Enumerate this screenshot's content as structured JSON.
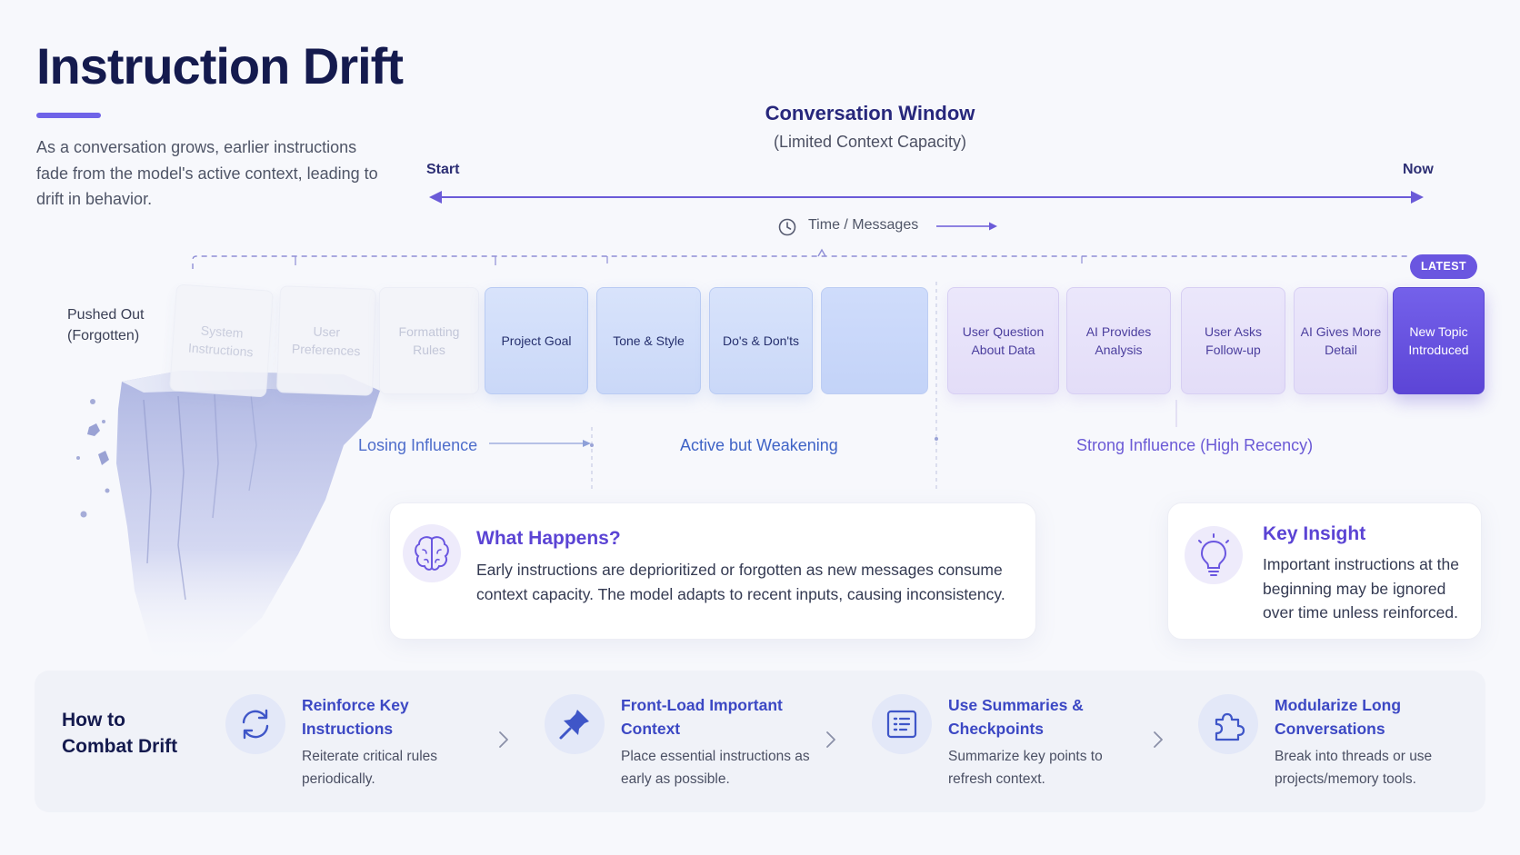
{
  "title": "Instruction Drift",
  "subtitle": "As a conversation grows, earlier instructions fade from the model's active context, leading to drift in behavior.",
  "window": {
    "title": "Conversation Window",
    "subtitle": "(Limited Context Capacity)",
    "start_label": "Start",
    "now_label": "Now",
    "time_label": "Time / Messages",
    "latest_badge": "LATEST"
  },
  "pushed_out_label": "Pushed Out (Forgotten)",
  "cards": [
    {
      "label": "System Instructions",
      "state": "forgotten"
    },
    {
      "label": "User Preferences",
      "state": "forgotten"
    },
    {
      "label": "Formatting Rules",
      "state": "forgotten"
    },
    {
      "label": "Project Goal",
      "state": "weakening"
    },
    {
      "label": "Tone & Style",
      "state": "weakening"
    },
    {
      "label": "Do's & Don'ts",
      "state": "weakening"
    },
    {
      "label": "",
      "state": "weakening"
    },
    {
      "label": "User Question About Data",
      "state": "strong"
    },
    {
      "label": "AI Provides Analysis",
      "state": "strong"
    },
    {
      "label": "User Asks Follow-up",
      "state": "strong"
    },
    {
      "label": "AI Gives More Detail",
      "state": "strong"
    },
    {
      "label": "New Topic Introduced",
      "state": "latest"
    }
  ],
  "zones": {
    "losing": "Losing Influence",
    "active": "Active but Weakening",
    "strong": "Strong Influence (High Recency)"
  },
  "what_happens": {
    "title": "What Happens?",
    "text": "Early instructions are deprioritized or forgotten as new messages consume context capacity. The model adapts to recent inputs, causing inconsistency.",
    "icon": "brain-icon"
  },
  "key_insight": {
    "title": "Key Insight",
    "text": "Important instructions at the beginning may be ignored over time unless reinforced.",
    "icon": "lightbulb-icon"
  },
  "combat": {
    "title": "How to Combat Drift",
    "steps": [
      {
        "title": "Reinforce Key Instructions",
        "desc": "Reiterate critical rules periodically.",
        "icon": "refresh-icon"
      },
      {
        "title": "Front-Load Important Context",
        "desc": "Place essential instructions as early as possible.",
        "icon": "pin-icon"
      },
      {
        "title": "Use Summaries & Checkpoints",
        "desc": "Summarize key points to refresh context.",
        "icon": "list-icon"
      },
      {
        "title": "Modularize Long Conversations",
        "desc": "Break into threads or use projects/memory tools.",
        "icon": "puzzle-icon"
      }
    ]
  },
  "colors": {
    "accent": "#6a56e0",
    "navy": "#141a4e",
    "blue_card": "#cad8f8",
    "lavender_card": "#e3ddf8",
    "faded_card": "#f3f4f9"
  }
}
